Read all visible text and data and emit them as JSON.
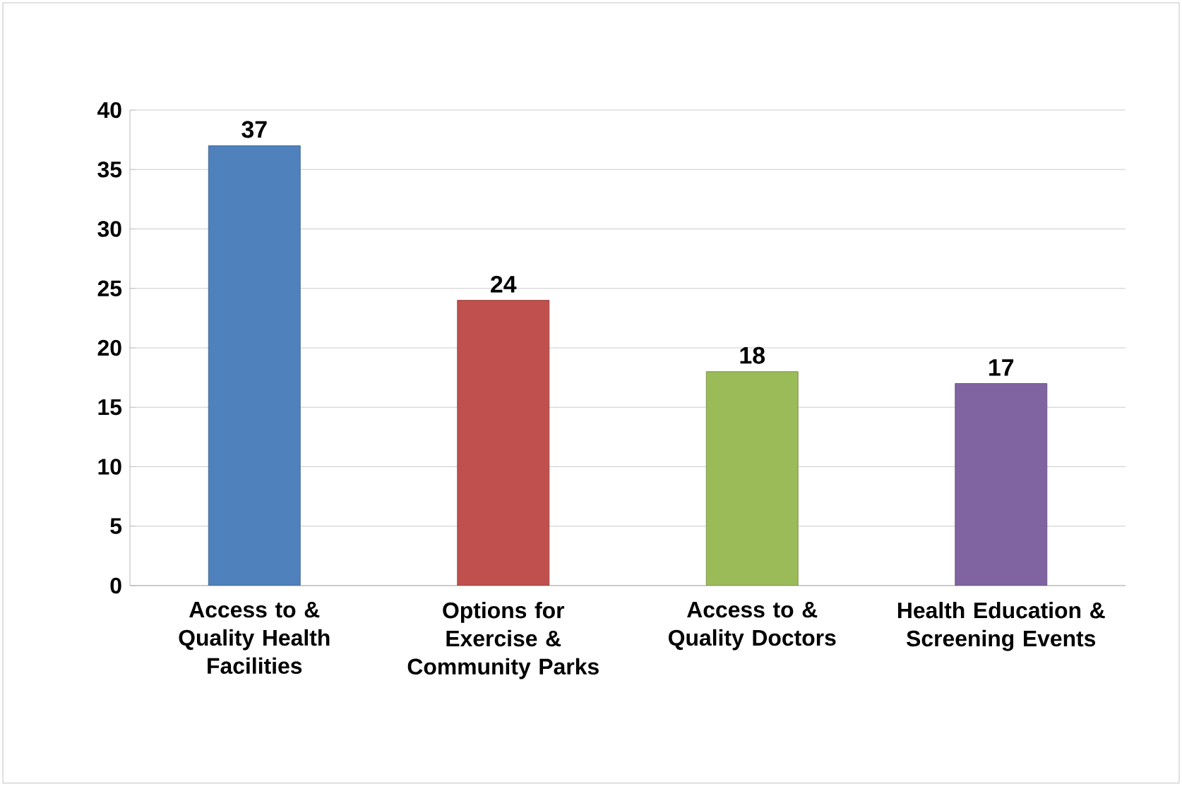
{
  "chart_data": {
    "type": "bar",
    "categories": [
      "Access to & Quality Health Facilities",
      "Options for Exercise & Community Parks",
      "Access to & Quality Doctors",
      "Health Education & Screening Events"
    ],
    "values": [
      37,
      24,
      18,
      17
    ],
    "colors": [
      "#4f81bd",
      "#c0504d",
      "#9bbb59",
      "#8064a2"
    ],
    "ylim": [
      0,
      40
    ],
    "yticks": [
      0,
      5,
      10,
      15,
      20,
      25,
      30,
      35,
      40
    ],
    "grid": "y",
    "data_labels": true
  }
}
